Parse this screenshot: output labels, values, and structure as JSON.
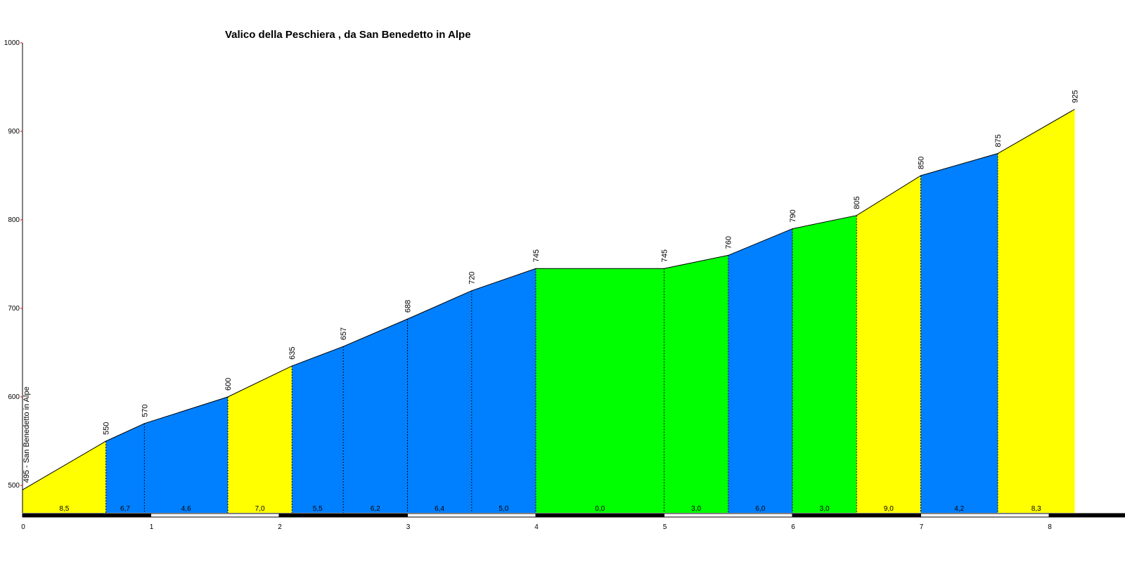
{
  "chart_data": {
    "type": "area",
    "title": "Valico della Peschiera , da San Benedetto in Alpe",
    "start_label": "495 - San Benedetto in Alpe",
    "xlim": [
      0,
      8.6
    ],
    "ylim": [
      470,
      1000
    ],
    "y_ticks": [
      500,
      600,
      700,
      800,
      900,
      1000
    ],
    "x_ticks": [
      0,
      1,
      2,
      3,
      4,
      5,
      6,
      7,
      8
    ],
    "colors": {
      "yellow": "#ffff00",
      "blue": "#0080ff",
      "green": "#00ff00",
      "axis_tick": "#ff0000"
    },
    "points": [
      {
        "km": 0,
        "alt": 495,
        "label": ""
      },
      {
        "km": 0.65,
        "alt": 550,
        "label": "550"
      },
      {
        "km": 0.95,
        "alt": 570,
        "label": "570"
      },
      {
        "km": 1.6,
        "alt": 600,
        "label": "600"
      },
      {
        "km": 2.1,
        "alt": 635,
        "label": "635"
      },
      {
        "km": 2.5,
        "alt": 657,
        "label": "657"
      },
      {
        "km": 3.0,
        "alt": 688,
        "label": "688"
      },
      {
        "km": 3.5,
        "alt": 720,
        "label": "720"
      },
      {
        "km": 4.0,
        "alt": 745,
        "label": "745"
      },
      {
        "km": 5.0,
        "alt": 745,
        "label": "745"
      },
      {
        "km": 5.5,
        "alt": 760,
        "label": "760"
      },
      {
        "km": 6.0,
        "alt": 790,
        "label": "790"
      },
      {
        "km": 6.5,
        "alt": 805,
        "label": "805"
      },
      {
        "km": 7.0,
        "alt": 850,
        "label": "850"
      },
      {
        "km": 7.6,
        "alt": 875,
        "label": "875"
      },
      {
        "km": 8.2,
        "alt": 925,
        "label": "925"
      }
    ],
    "segments": [
      {
        "grade": "8,5",
        "color": "yellow"
      },
      {
        "grade": "6,7",
        "color": "blue"
      },
      {
        "grade": "4,6",
        "color": "blue"
      },
      {
        "grade": "7,0",
        "color": "yellow"
      },
      {
        "grade": "5,5",
        "color": "blue"
      },
      {
        "grade": "6,2",
        "color": "blue"
      },
      {
        "grade": "6,4",
        "color": "blue"
      },
      {
        "grade": "5,0",
        "color": "blue"
      },
      {
        "grade": "0,0",
        "color": "green"
      },
      {
        "grade": "3,0",
        "color": "green"
      },
      {
        "grade": "6,0",
        "color": "blue"
      },
      {
        "grade": "3,0",
        "color": "green"
      },
      {
        "grade": "9,0",
        "color": "yellow"
      },
      {
        "grade": "4,2",
        "color": "blue"
      },
      {
        "grade": "8,3",
        "color": "yellow"
      }
    ]
  }
}
